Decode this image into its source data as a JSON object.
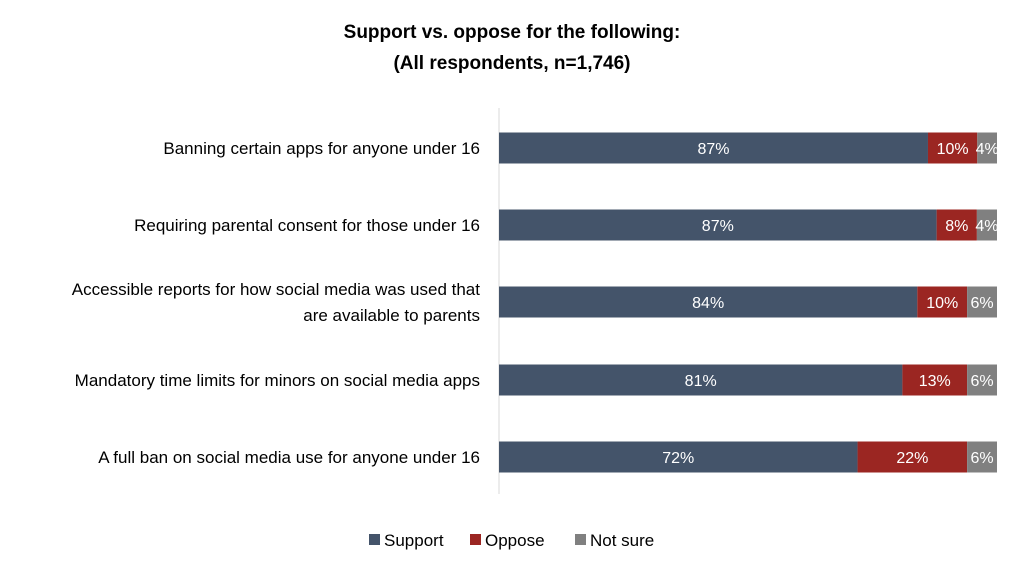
{
  "chart_data": {
    "type": "bar",
    "orientation": "horizontal",
    "stacked": true,
    "title_lines": [
      "Support vs. oppose for the following:",
      "(All respondents, n=1,746)"
    ],
    "categories": [
      [
        "Banning certain apps for anyone under 16"
      ],
      [
        "Requiring parental consent for those under 16"
      ],
      [
        "Accessible reports for how social media was used that",
        "are available to parents"
      ],
      [
        "Mandatory time limits for minors on social media apps"
      ],
      [
        "A full ban on social media use for anyone under 16"
      ]
    ],
    "series": [
      {
        "name": "Support",
        "color": "#44546A",
        "values": [
          87,
          87,
          84,
          81,
          72
        ]
      },
      {
        "name": "Oppose",
        "color": "#9B2622",
        "values": [
          10,
          8,
          10,
          13,
          22
        ]
      },
      {
        "name": "Not sure",
        "color": "#808080",
        "values": [
          4,
          4,
          6,
          6,
          6
        ]
      }
    ],
    "value_suffix": "%",
    "legend": "bottom",
    "grid": false
  }
}
